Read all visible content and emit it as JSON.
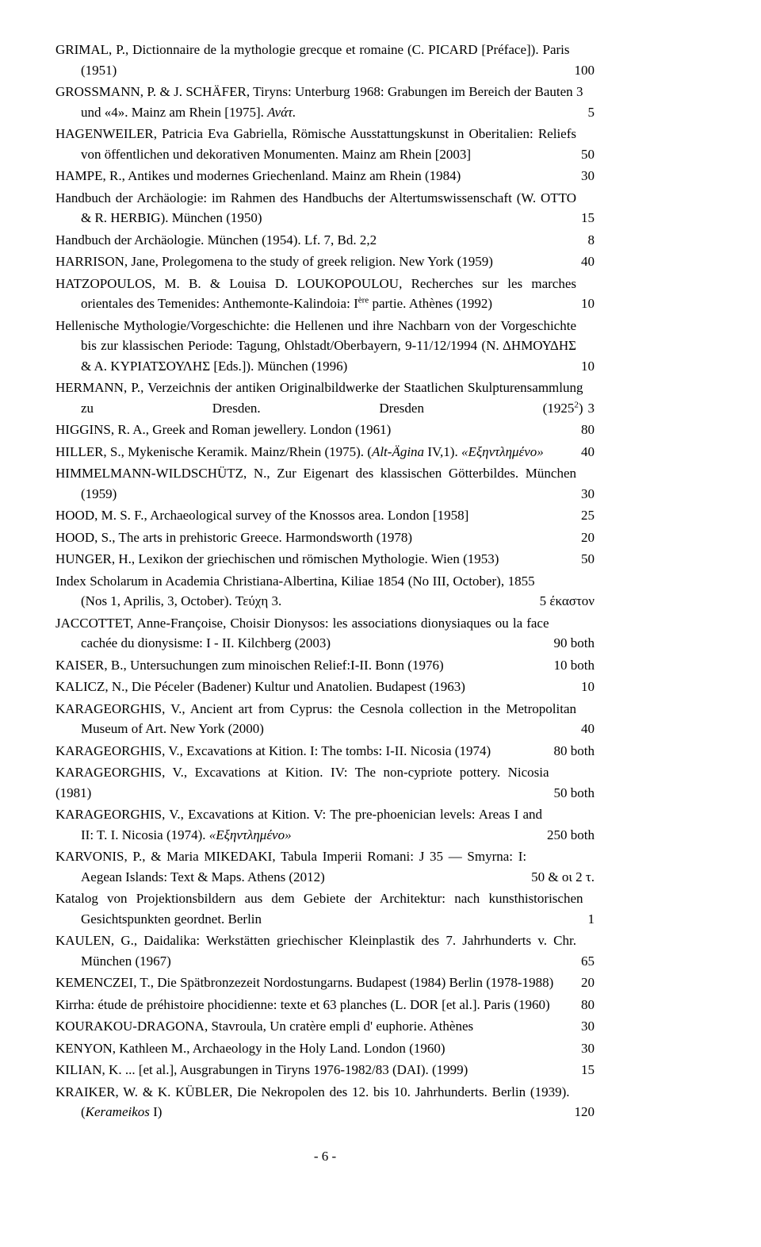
{
  "entries": [
    {
      "text": "GRIMAL, P., Dictionnaire de la mythologie grecque et romaine (C. PICARD [Préface]). Paris (1951)",
      "price": "100",
      "indent": true
    },
    {
      "text": "GROSSMANN, P. & J. SCHÄFER, Tiryns: Unterburg 1968: Grabungen im Bereich der Bauten 3 und «4». Mainz am Rhein [1975]. <span class=\"italic\">Ανάτ.</span>",
      "price": "5",
      "indent": true
    },
    {
      "text": "HAGENWEILER, Patricia Eva Gabriella, Römische Ausstattungskunst in Oberitalien: Reliefs von öffentlichen und dekorativen Monumenten. Mainz am Rhein [2003]",
      "price": "50",
      "indent": true
    },
    {
      "text": "HAMPE, R., Antikes und modernes Griechenland. Mainz am Rhein (1984)",
      "price": "30",
      "indent": false
    },
    {
      "text": "Handbuch der Archäologie: im Rahmen des Handbuchs der Altertumswissenschaft (W. OTTO & R. HERBIG). München (1950)",
      "price": "15",
      "indent": true
    },
    {
      "text": "Handbuch der Archäologie. München (1954). Lf. 7, Bd. 2,2",
      "price": "8",
      "indent": false
    },
    {
      "text": "HARRISON, Jane, Prolegomena to the study of greek religion. New York (1959)",
      "price": "40",
      "indent": false
    },
    {
      "text": "HATZOPOULOS, M. B. & Louisa D. LOUKOPOULOU, Recherches sur les marches orientales des Temenides: Anthemonte-Kalindoia: I<sup>ère</sup> partie. Athènes (1992)",
      "price": "10",
      "indent": true
    },
    {
      "text": "Hellenische Mythologie/Vorgeschichte: die Hellenen und ihre Nachbarn von der Vorgeschichte bis zur klassischen Periode: Tagung, Ohlstadt/Oberbayern, 9-11/12/1994 (Ν. ΔΗΜΟΥΔΗΣ & Α. ΚΥΡΙΑΤΣΟΥΛΗΣ [Eds.]). München (1996)",
      "price": "10",
      "indent": true
    },
    {
      "text": "HERMANN, P., Verzeichnis der antiken Originalbildwerke der Staatlichen Skulpturensammlung zu Dresden. Dresden (1925<sup>2</sup>)",
      "price": "3",
      "indent": true,
      "justifyFull": true
    },
    {
      "text": "HIGGINS, R. A., Greek and Roman jewellery. London (1961)",
      "price": "80",
      "indent": false
    },
    {
      "text": "HILLER, S., Mykenische Keramik. Mainz/Rhein (1975). (<span class=\"italic\">Alt-Ägina</span> IV,1). <span class=\"italic\">«Εξηντλημένο»</span>",
      "price": "40",
      "indent": false
    },
    {
      "text": "HIMMELMANN-WILDSCHÜTZ, N., Zur Eigenart des klassischen Götterbildes. München (1959)",
      "price": "30",
      "indent": true
    },
    {
      "text": "HOOD, M. S. F., Archaeological survey of the Knossos area. London [1958]",
      "price": "25",
      "indent": false
    },
    {
      "text": "HOOD, S., The arts in prehistoric Greece. Harmondsworth (1978)",
      "price": "20",
      "indent": false
    },
    {
      "text": "HUNGER, H., Lexikon der griechischen und römischen Mythologie. Wien (1953)",
      "price": "50",
      "indent": false
    },
    {
      "text": "Index Scholarum in Academia Christiana-Albertina, Kiliae 1854 (No III, October), 1855 (Nos 1, Aprilis, 3, October). Τεύχη 3.",
      "price": "5 έκαστον",
      "indent": true
    },
    {
      "text": "JACCOTTET, Anne-Françoise, Choisir Dionysos: les associations dionysiaques ou la face cachée du dionysisme: I - II. Kilchberg (2003)",
      "price": "90 both",
      "indent": true
    },
    {
      "text": "KAISER, B., Untersuchungen zum minoischen Relief:I-II. Bonn (1976)",
      "price": "10 both",
      "indent": false
    },
    {
      "text": "KALICZ, N., Die Péceler (Badener) Kultur und Anatolien. Budapest (1963)",
      "price": "10",
      "indent": false
    },
    {
      "text": "KARAGEORGHIS, V., Ancient art from Cyprus: the Cesnola collection in the Metropolitan Museum of Art. New York (2000)",
      "price": "40",
      "indent": true
    },
    {
      "text": "KARAGEORGHIS, V., Excavations at Kition. I: The tombs: I-II. Nicosia (1974)",
      "price": "80 both",
      "indent": false
    },
    {
      "text": "KARAGEORGHIS, V., Excavations at Kition. IV: The non-cypriote pottery. Nicosia (1981)",
      "price": "50 both",
      "indent": false
    },
    {
      "text": "KARAGEORGHIS, V., Excavations at Kition. V: The pre-phoenician levels: Areas I and II: T. I. Nicosia (1974). <span class=\"italic\">«Εξηντλημένο»</span>",
      "price": "250 both",
      "indent": true
    },
    {
      "text": "KARVONIS, P., & Maria MIKEDAKI, Tabula Imperii Romani: J 35 — Smyrna: I: Aegean Islands: Text & Maps. Athens (2012)",
      "price": "50 & οι 2 τ.",
      "indent": true
    },
    {
      "text": "Katalog von Projektionsbildern aus dem Gebiete der Architektur: nach kunsthistorischen Gesichtspunkten geordnet. Berlin",
      "price": "1",
      "indent": true
    },
    {
      "text": "KAULEN, G., Daidalika: Werkstätten griechischer Kleinplastik des 7. Jahrhunderts v. Chr. München (1967)",
      "price": "65",
      "indent": true
    },
    {
      "text": "KEMENCZEI, T., Die Spätbronzezeit Nordostungarns. Budapest (1984) Berlin (1978-1988)",
      "price": "20",
      "indent": false
    },
    {
      "text": "Kirrha: étude de préhistoire phocidienne: texte et 63 planches (L. DOR  [et al.]. Paris (1960)",
      "price": "80",
      "indent": false
    },
    {
      "text": "KOURAKOU-DRAGONA, Stavroula, Un cratère empli d' euphorie. Athènes",
      "price": "30",
      "indent": false
    },
    {
      "text": "KENYON, Kathleen M., Archaeology in the Holy Land. London (1960)",
      "price": "30",
      "indent": false
    },
    {
      "text": "KILIAN, K. ... [et al.], Ausgrabungen in Tiryns 1976-1982/83 (DAI). (1999)",
      "price": "15",
      "indent": false
    },
    {
      "text": "KRAIKER, W. & K. KÜBLER, Die Nekropolen des 12. bis 10. Jahrhunderts. Berlin (1939). (<span class=\"italic\">Kerameikos</span> I)",
      "price": "120",
      "indent": true
    }
  ],
  "pagenum": "- 6 -"
}
